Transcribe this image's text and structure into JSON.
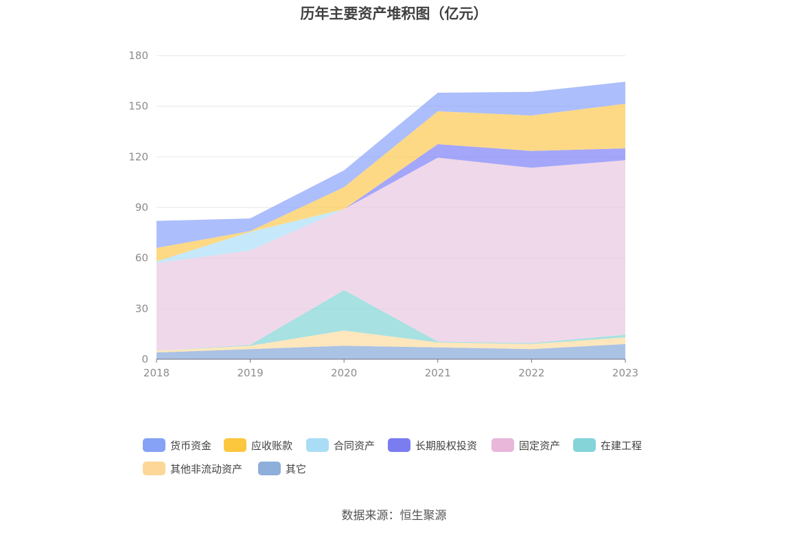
{
  "chart_data": {
    "type": "area",
    "stacked": true,
    "title": "历年主要资产堆积图（亿元）",
    "x": [
      "2018",
      "2019",
      "2020",
      "2021",
      "2022",
      "2023"
    ],
    "ylim": [
      0,
      180
    ],
    "yticks": [
      0,
      30,
      60,
      90,
      120,
      150,
      180
    ],
    "grid": true,
    "legend_position": "bottom",
    "series": [
      {
        "name": "其它",
        "color": "#8eaedb",
        "values": [
          4,
          6,
          8,
          7,
          6,
          9
        ]
      },
      {
        "name": "其他非流动资产",
        "color": "#fddfa6",
        "values": [
          1,
          2,
          9,
          3,
          3,
          4
        ]
      },
      {
        "name": "在建工程",
        "color": "#8ad7d8",
        "values": [
          0,
          0.5,
          24,
          0.5,
          0.5,
          1.5
        ]
      },
      {
        "name": "固定资产",
        "color": "#eacbe3",
        "values": [
          52,
          56,
          48,
          109,
          104,
          103.5
        ]
      },
      {
        "name": "长期股权投资",
        "color": "#8688f8",
        "values": [
          0,
          0,
          0,
          8,
          10,
          7
        ]
      },
      {
        "name": "合同资产",
        "color": "#b1e2f8",
        "values": [
          1,
          11,
          0,
          0,
          0,
          0
        ]
      },
      {
        "name": "应收账款",
        "color": "#fccc5e",
        "values": [
          8,
          0.5,
          13,
          19.5,
          21,
          26.5
        ]
      },
      {
        "name": "货币资金",
        "color": "#90a8fa",
        "values": [
          16,
          7.5,
          10,
          11,
          14,
          13
        ]
      }
    ]
  },
  "legend": [
    {
      "name": "货币资金",
      "color": "#86a2f6"
    },
    {
      "name": "应收账款",
      "color": "#fcc63d"
    },
    {
      "name": "合同资产",
      "color": "#a9ddf5"
    },
    {
      "name": "长期股权投资",
      "color": "#7a7cf0"
    },
    {
      "name": "固定资产",
      "color": "#e8b7da"
    },
    {
      "name": "在建工程",
      "color": "#84d4d8"
    },
    {
      "name": "其他非流动资产",
      "color": "#fcd798"
    },
    {
      "name": "其它",
      "color": "#8eaedb"
    }
  ],
  "source": "数据来源：恒生聚源"
}
